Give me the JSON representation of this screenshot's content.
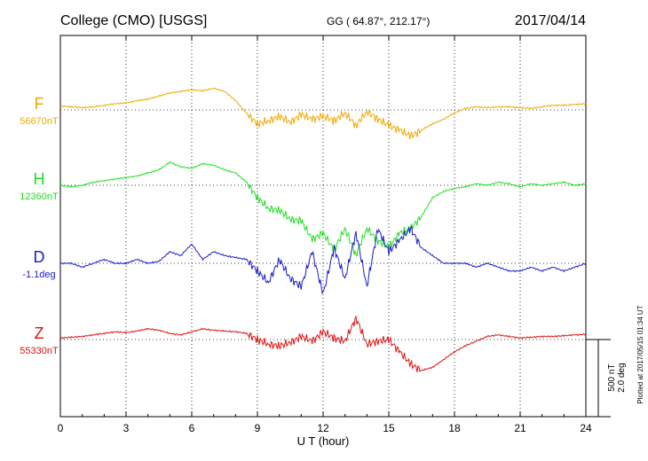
{
  "header": {
    "station": "College (CMO)  [USGS]",
    "coords": "GG ( 64.87°, 212.17°)",
    "date": "2017/04/14"
  },
  "side": {
    "plotted": "Plotted at 2017/05/15 01:34 UT",
    "scale_nt": "500 nT",
    "scale_deg": "2.0 deg"
  },
  "chart_data": {
    "type": "line",
    "xlabel": "U T (hour)",
    "xlim": [
      0,
      24
    ],
    "xticks": [
      "0",
      "3",
      "6",
      "9",
      "12",
      "15",
      "18",
      "21",
      "24"
    ],
    "grid": true,
    "series": [
      {
        "name": "F",
        "baseline_label": "56670nT",
        "color": "#f0a800",
        "baseline_row": 0,
        "x": [
          0,
          0.5,
          1,
          1.5,
          2,
          2.5,
          3,
          3.5,
          4,
          4.5,
          5,
          5.5,
          6,
          6.5,
          7,
          7.5,
          8,
          8.5,
          9,
          9.5,
          10,
          10.5,
          11,
          11.5,
          12,
          12.5,
          13,
          13.5,
          14,
          14.5,
          15,
          15.5,
          16,
          16.5,
          17,
          17.5,
          18,
          18.5,
          19,
          19.5,
          20,
          20.5,
          21,
          21.5,
          22,
          22.5,
          23,
          23.5,
          24
        ],
        "y": [
          25,
          20,
          15,
          20,
          30,
          40,
          45,
          60,
          70,
          90,
          110,
          120,
          130,
          125,
          140,
          120,
          60,
          -20,
          -90,
          -70,
          -40,
          -80,
          -30,
          -60,
          -40,
          -70,
          -20,
          -100,
          -10,
          -60,
          -100,
          -130,
          -170,
          -130,
          -90,
          -60,
          -20,
          10,
          20,
          15,
          20,
          20,
          15,
          10,
          20,
          30,
          30,
          35,
          40
        ]
      },
      {
        "name": "H",
        "baseline_label": "12360nT",
        "color": "#22dd22",
        "baseline_row": 1,
        "x": [
          0,
          0.5,
          1,
          1.5,
          2,
          2.5,
          3,
          3.5,
          4,
          4.5,
          5,
          5.5,
          6,
          6.5,
          7,
          7.5,
          8,
          8.5,
          9,
          9.5,
          10,
          10.5,
          11,
          11.5,
          12,
          12.5,
          13,
          13.5,
          14,
          14.5,
          15,
          15.5,
          16,
          16.5,
          17,
          17.5,
          18,
          18.5,
          19,
          19.5,
          20,
          20.5,
          21,
          21.5,
          22,
          22.5,
          23,
          23.5,
          24
        ],
        "y": [
          0,
          -10,
          0,
          20,
          30,
          40,
          50,
          60,
          80,
          100,
          150,
          120,
          110,
          140,
          130,
          100,
          80,
          20,
          -80,
          -150,
          -160,
          -220,
          -230,
          -350,
          -310,
          -420,
          -280,
          -450,
          -280,
          -360,
          -400,
          -310,
          -280,
          -200,
          -80,
          -40,
          -20,
          -10,
          10,
          0,
          20,
          10,
          -10,
          10,
          0,
          10,
          20,
          0,
          10
        ]
      },
      {
        "name": "D",
        "baseline_label": "-1.1deg",
        "color": "#1a1acc",
        "baseline_row": 2,
        "x": [
          0,
          0.5,
          1,
          1.5,
          2,
          2.5,
          3,
          3.5,
          4,
          4.5,
          5,
          5.5,
          6,
          6.5,
          7,
          7.5,
          8,
          8.5,
          9,
          9.5,
          10,
          10.5,
          11,
          11.5,
          12,
          12.5,
          13,
          13.5,
          14,
          14.5,
          15,
          15.5,
          16,
          16.5,
          17,
          17.5,
          18,
          18.5,
          19,
          19.5,
          20,
          20.5,
          21,
          21.5,
          22,
          22.5,
          23,
          23.5,
          24
        ],
        "y": [
          0,
          0,
          -0.1,
          0,
          0.1,
          0,
          0,
          0.1,
          0,
          0.05,
          0.3,
          0.2,
          0.5,
          0.1,
          0.3,
          0.2,
          0.15,
          0.1,
          -0.2,
          -0.5,
          0.1,
          -0.4,
          -0.6,
          0.3,
          -0.8,
          0.4,
          -0.4,
          0.8,
          -0.6,
          0.9,
          0.3,
          0.6,
          0.9,
          0.4,
          0.2,
          0,
          0,
          0,
          -0.1,
          0,
          -0.1,
          -0.2,
          -0.2,
          -0.1,
          -0.2,
          -0.1,
          -0.2,
          -0.1,
          0
        ]
      },
      {
        "name": "Z",
        "baseline_label": "55330nT",
        "color": "#dd1111",
        "baseline_row": 3,
        "x": [
          0,
          0.5,
          1,
          1.5,
          2,
          2.5,
          3,
          3.5,
          4,
          4.5,
          5,
          5.5,
          6,
          6.5,
          7,
          7.5,
          8,
          8.5,
          9,
          9.5,
          10,
          10.5,
          11,
          11.5,
          12,
          12.5,
          13,
          13.5,
          14,
          14.5,
          15,
          15.5,
          16,
          16.5,
          17,
          17.5,
          18,
          18.5,
          19,
          19.5,
          20,
          20.5,
          21,
          21.5,
          22,
          22.5,
          23,
          23.5,
          24
        ],
        "y": [
          10,
          15,
          20,
          30,
          40,
          50,
          45,
          55,
          70,
          60,
          40,
          30,
          50,
          70,
          60,
          55,
          50,
          40,
          0,
          -30,
          -40,
          -20,
          20,
          -10,
          50,
          10,
          -10,
          140,
          -30,
          -10,
          0,
          -80,
          -160,
          -200,
          -180,
          -130,
          -80,
          -40,
          -10,
          20,
          30,
          20,
          10,
          15,
          20,
          20,
          25,
          30,
          35
        ]
      }
    ]
  }
}
